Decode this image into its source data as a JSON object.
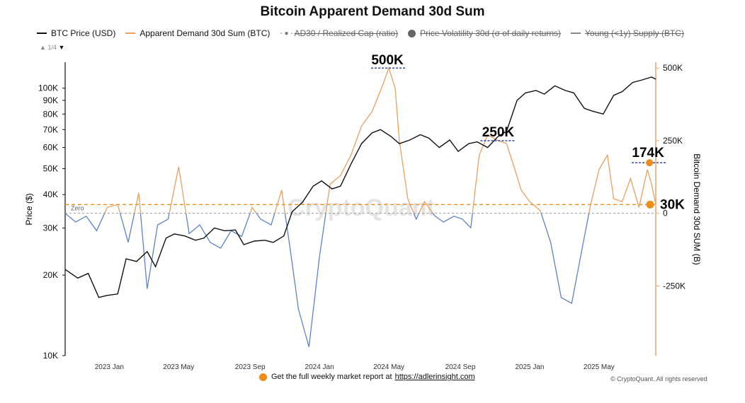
{
  "chart_data": {
    "type": "line",
    "title": "Bitcoin Apparent Demand 30d Sum",
    "ylabel_left": "Price ($)",
    "ylabel_right": "Bitcoin Demand 30d SUM (B)",
    "x_ticks": [
      "2023 Jan",
      "2023 May",
      "2023 Sep",
      "2024 Jan",
      "2024 May",
      "2024 Sep",
      "2025 Jan",
      "2025 May"
    ],
    "y_left_ticks": [
      "10K",
      "20K",
      "30K",
      "40K",
      "50K",
      "60K",
      "70K",
      "80K",
      "90K",
      "100K"
    ],
    "y_left_values": [
      10000,
      20000,
      30000,
      40000,
      50000,
      60000,
      70000,
      80000,
      90000,
      100000
    ],
    "y_left_range": [
      10000,
      125000
    ],
    "y_right_ticks": [
      "500K",
      "250K",
      "0",
      "-250K"
    ],
    "y_right_values": [
      500000,
      250000,
      0,
      -250000
    ],
    "y_right_range": [
      -490000,
      520000
    ],
    "legend": [
      {
        "label": "BTC Price (USD)",
        "color": "#111111",
        "active": true,
        "marker": "line"
      },
      {
        "label": "Apparent Demand 30d Sum (BTC)",
        "color": "#f0a05a",
        "active": true,
        "marker": "line"
      },
      {
        "label": "AD30 / Realized Cap (ratio)",
        "color": "#777777",
        "active": false,
        "marker": "dashdot"
      },
      {
        "label": "Price Volatility 30d (σ of daily returns)",
        "color": "#666666",
        "active": false,
        "marker": "dot"
      },
      {
        "label": "Young (<1y) Supply (BTC)",
        "color": "#777777",
        "active": false,
        "marker": "line"
      }
    ],
    "legend_page": "1/4",
    "colors": {
      "price": "#111111",
      "demand_pos": "#e8a060",
      "demand_neg": "#5b84c8",
      "accent": "#f08c1a",
      "axis_right": "#e0a870",
      "guide": "#2b4aa0"
    },
    "series": [
      {
        "name": "BTC Price (USD)",
        "x": [
          2022.79,
          2022.85,
          2022.9,
          2022.95,
          2022.99,
          2023.04,
          2023.08,
          2023.13,
          2023.18,
          2023.22,
          2023.27,
          2023.31,
          2023.36,
          2023.41,
          2023.45,
          2023.5,
          2023.55,
          2023.6,
          2023.64,
          2023.69,
          2023.74,
          2023.78,
          2023.83,
          2023.87,
          2023.92,
          2023.97,
          2024.01,
          2024.06,
          2024.1,
          2024.15,
          2024.2,
          2024.25,
          2024.29,
          2024.34,
          2024.38,
          2024.43,
          2024.48,
          2024.52,
          2024.57,
          2024.62,
          2024.66,
          2024.71,
          2024.75,
          2024.8,
          2024.85,
          2024.89,
          2024.94,
          2024.98,
          2025.03,
          2025.07,
          2025.12,
          2025.17,
          2025.21,
          2025.26,
          2025.3,
          2025.35,
          2025.4,
          2025.44,
          2025.49,
          2025.53,
          2025.58,
          2025.6
        ],
        "values": [
          21000,
          19500,
          20300,
          16500,
          16800,
          17000,
          23000,
          22500,
          24500,
          21500,
          27500,
          28500,
          28000,
          27000,
          27500,
          30000,
          29300,
          29500,
          26000,
          26800,
          27000,
          26500,
          28000,
          34500,
          37500,
          43000,
          45000,
          42000,
          43000,
          52000,
          62000,
          68000,
          70000,
          66000,
          62000,
          64000,
          67000,
          65000,
          60000,
          64000,
          58000,
          62000,
          63000,
          60000,
          66000,
          69000,
          90000,
          96000,
          98000,
          95000,
          102000,
          98000,
          96000,
          84000,
          82000,
          80000,
          94000,
          97000,
          105000,
          107000,
          110000,
          108000
        ]
      },
      {
        "name": "Apparent Demand 30d Sum (BTC)",
        "x": [
          2022.79,
          2022.84,
          2022.89,
          2022.94,
          2022.99,
          2023.04,
          2023.09,
          2023.14,
          2023.18,
          2023.23,
          2023.28,
          2023.33,
          2023.38,
          2023.43,
          2023.48,
          2023.53,
          2023.58,
          2023.63,
          2023.68,
          2023.72,
          2023.77,
          2023.82,
          2023.86,
          2023.9,
          2023.95,
          2024.0,
          2024.05,
          2024.1,
          2024.15,
          2024.2,
          2024.25,
          2024.3,
          2024.33,
          2024.36,
          2024.38,
          2024.42,
          2024.46,
          2024.5,
          2024.55,
          2024.59,
          2024.64,
          2024.68,
          2024.72,
          2024.76,
          2024.8,
          2024.85,
          2024.89,
          2024.93,
          2024.96,
          2025.0,
          2025.05,
          2025.1,
          2025.15,
          2025.2,
          2025.25,
          2025.29,
          2025.33,
          2025.37,
          2025.4,
          2025.44,
          2025.48,
          2025.52,
          2025.56,
          2025.58,
          2025.6
        ],
        "values": [
          0,
          -30000,
          -10000,
          -60000,
          20000,
          30000,
          -100000,
          70000,
          -260000,
          -40000,
          -20000,
          160000,
          -70000,
          -40000,
          -100000,
          -120000,
          -60000,
          -80000,
          20000,
          -20000,
          -40000,
          80000,
          -120000,
          -330000,
          -460000,
          -150000,
          100000,
          130000,
          200000,
          300000,
          350000,
          440000,
          500000,
          430000,
          250000,
          50000,
          -20000,
          40000,
          -10000,
          -30000,
          -10000,
          -20000,
          -50000,
          200000,
          270000,
          250000,
          240000,
          150000,
          80000,
          40000,
          10000,
          -100000,
          -290000,
          -310000,
          -120000,
          30000,
          150000,
          200000,
          50000,
          40000,
          120000,
          20000,
          150000,
          100000,
          30000
        ]
      }
    ],
    "annotations": [
      {
        "text": "500K",
        "value": 500000
      },
      {
        "text": "250K",
        "value": 250000
      },
      {
        "text": "174K",
        "value": 174000
      },
      {
        "text": "30K",
        "value": 30000
      }
    ],
    "reference_lines": [
      {
        "label": "Zero",
        "value": 0,
        "style": "dashed gray"
      },
      {
        "label": "",
        "value": 30000,
        "style": "dashed orange"
      }
    ]
  },
  "watermark": "CryptoQuant",
  "footer": {
    "text": "Get the full weekly market report at",
    "link": "https://adlerinsight.com"
  },
  "copyright": "© CryptoQuant. All rights reserved"
}
